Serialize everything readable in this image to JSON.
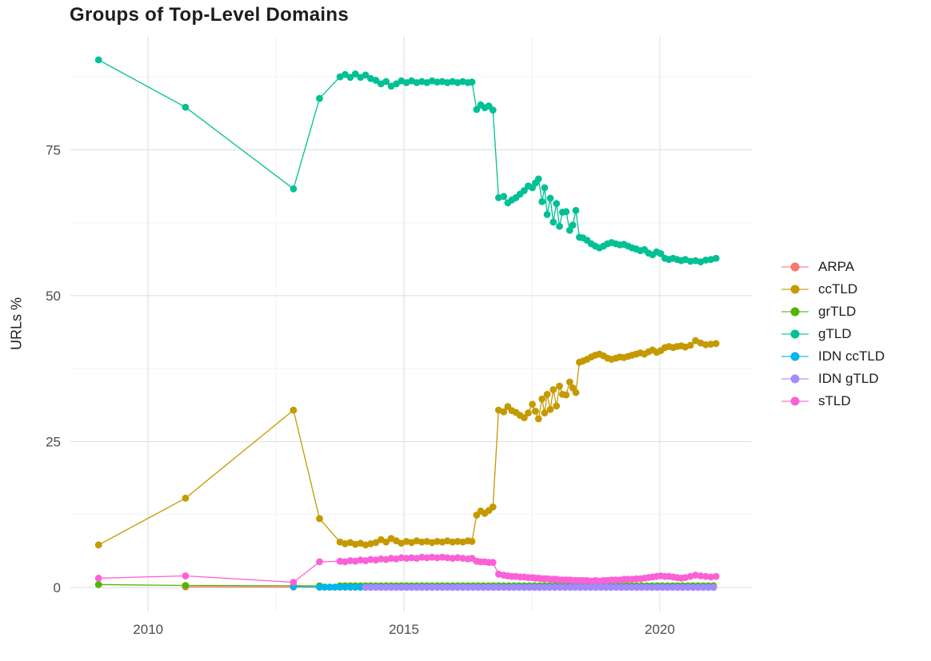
{
  "page": {
    "background": "#ffffff"
  },
  "colors": {
    "major_grid": "#e3e3e3",
    "minor_grid": "#f2f2f2",
    "tick_label": "#4d4d4d",
    "title_text": "#1d1d1d",
    "axis_title_text": "#222222"
  },
  "chart_data": {
    "type": "line",
    "title": "Groups of Top-Level Domains",
    "xlabel": "",
    "ylabel": "URLs %",
    "grid": true,
    "legend_position": "right",
    "x_domain": [
      2008.48,
      2021.8
    ],
    "y_domain": [
      -4.1,
      94.5
    ],
    "x_ticks": [
      2010,
      2015,
      2020
    ],
    "x_tick_labels": [
      "2010",
      "2015",
      "2020"
    ],
    "x_minor_ticks": [
      2012.5,
      2017.5
    ],
    "y_ticks": [
      0,
      25,
      50,
      75
    ],
    "y_tick_labels": [
      "0",
      "25",
      "50",
      "75"
    ],
    "y_minor_ticks": [
      12.5,
      37.5,
      62.5,
      87.5
    ],
    "series": [
      {
        "name": "ARPA",
        "color": "#F8766D",
        "points": [
          [
            2010.73,
            0.1
          ],
          [
            2012.84,
            0.07
          ]
        ],
        "flat": {
          "from": 2013.35,
          "to": 2021.05,
          "step": 0.1,
          "value": 0.05
        }
      },
      {
        "name": "ccTLD",
        "color": "#C49A00",
        "points": [
          [
            2009.03,
            7.3
          ],
          [
            2010.73,
            15.3
          ],
          [
            2012.84,
            30.4
          ],
          [
            2013.35,
            11.8
          ],
          [
            2013.75,
            7.8
          ],
          [
            2013.85,
            7.5
          ],
          [
            2013.95,
            7.7
          ],
          [
            2014.05,
            7.4
          ],
          [
            2014.15,
            7.6
          ],
          [
            2014.25,
            7.3
          ],
          [
            2014.35,
            7.5
          ],
          [
            2014.45,
            7.7
          ],
          [
            2014.55,
            8.2
          ],
          [
            2014.65,
            7.8
          ],
          [
            2014.75,
            8.4
          ],
          [
            2014.85,
            8.0
          ],
          [
            2014.95,
            7.6
          ],
          [
            2015.05,
            7.9
          ],
          [
            2015.15,
            7.7
          ],
          [
            2015.25,
            8.0
          ],
          [
            2015.35,
            7.8
          ],
          [
            2015.45,
            7.9
          ],
          [
            2015.55,
            7.7
          ],
          [
            2015.65,
            7.9
          ],
          [
            2015.75,
            7.8
          ],
          [
            2015.85,
            8.0
          ],
          [
            2015.95,
            7.8
          ],
          [
            2016.05,
            7.9
          ],
          [
            2016.15,
            7.8
          ],
          [
            2016.25,
            8.0
          ],
          [
            2016.33,
            7.9
          ],
          [
            2016.42,
            12.4
          ],
          [
            2016.5,
            13.1
          ],
          [
            2016.58,
            12.7
          ],
          [
            2016.66,
            13.2
          ],
          [
            2016.74,
            13.8
          ],
          [
            2016.85,
            30.4
          ],
          [
            2016.95,
            30.1
          ],
          [
            2017.03,
            31.0
          ],
          [
            2017.11,
            30.3
          ],
          [
            2017.19,
            30.0
          ],
          [
            2017.27,
            29.5
          ],
          [
            2017.35,
            29.1
          ],
          [
            2017.43,
            29.9
          ],
          [
            2017.51,
            31.4
          ],
          [
            2017.57,
            30.2
          ],
          [
            2017.63,
            28.9
          ],
          [
            2017.7,
            32.3
          ],
          [
            2017.75,
            29.9
          ],
          [
            2017.8,
            33.1
          ],
          [
            2017.86,
            30.5
          ],
          [
            2017.92,
            33.9
          ],
          [
            2017.98,
            31.1
          ],
          [
            2018.04,
            34.5
          ],
          [
            2018.1,
            33.1
          ],
          [
            2018.17,
            33.0
          ],
          [
            2018.24,
            35.2
          ],
          [
            2018.3,
            34.2
          ],
          [
            2018.36,
            33.4
          ],
          [
            2018.43,
            38.6
          ],
          [
            2018.5,
            38.8
          ],
          [
            2018.58,
            39.1
          ],
          [
            2018.66,
            39.5
          ],
          [
            2018.74,
            39.8
          ],
          [
            2018.82,
            40.0
          ],
          [
            2018.9,
            39.7
          ],
          [
            2018.98,
            39.3
          ],
          [
            2019.06,
            39.1
          ],
          [
            2019.14,
            39.3
          ],
          [
            2019.22,
            39.5
          ],
          [
            2019.3,
            39.4
          ],
          [
            2019.38,
            39.6
          ],
          [
            2019.46,
            39.8
          ],
          [
            2019.54,
            40.0
          ],
          [
            2019.62,
            40.2
          ],
          [
            2019.7,
            40.0
          ],
          [
            2019.78,
            40.4
          ],
          [
            2019.86,
            40.7
          ],
          [
            2019.94,
            40.3
          ],
          [
            2020.02,
            40.6
          ],
          [
            2020.1,
            41.1
          ],
          [
            2020.18,
            41.3
          ],
          [
            2020.26,
            41.1
          ],
          [
            2020.34,
            41.3
          ],
          [
            2020.42,
            41.4
          ],
          [
            2020.5,
            41.2
          ],
          [
            2020.6,
            41.5
          ],
          [
            2020.7,
            42.3
          ],
          [
            2020.8,
            41.9
          ],
          [
            2020.9,
            41.6
          ],
          [
            2021.0,
            41.7
          ],
          [
            2021.1,
            41.8
          ]
        ]
      },
      {
        "name": "grTLD",
        "color": "#53B400",
        "points": [
          [
            2009.03,
            0.5
          ],
          [
            2010.73,
            0.35
          ],
          [
            2012.84,
            0.3
          ],
          [
            2013.35,
            0.3
          ]
        ],
        "flat": {
          "from": 2013.75,
          "to": 2021.05,
          "step": 0.1,
          "value": 0.3
        }
      },
      {
        "name": "gTLD",
        "color": "#00C094",
        "points": [
          [
            2009.03,
            90.4
          ],
          [
            2010.73,
            82.3
          ],
          [
            2012.84,
            68.3
          ],
          [
            2013.35,
            83.8
          ],
          [
            2013.75,
            87.5
          ],
          [
            2013.85,
            87.9
          ],
          [
            2013.95,
            87.4
          ],
          [
            2014.05,
            88.0
          ],
          [
            2014.15,
            87.4
          ],
          [
            2014.25,
            87.8
          ],
          [
            2014.35,
            87.2
          ],
          [
            2014.45,
            86.9
          ],
          [
            2014.55,
            86.3
          ],
          [
            2014.65,
            86.7
          ],
          [
            2014.75,
            85.9
          ],
          [
            2014.85,
            86.3
          ],
          [
            2014.95,
            86.8
          ],
          [
            2015.05,
            86.5
          ],
          [
            2015.15,
            86.8
          ],
          [
            2015.25,
            86.5
          ],
          [
            2015.35,
            86.7
          ],
          [
            2015.45,
            86.5
          ],
          [
            2015.55,
            86.8
          ],
          [
            2015.65,
            86.6
          ],
          [
            2015.75,
            86.7
          ],
          [
            2015.85,
            86.5
          ],
          [
            2015.95,
            86.7
          ],
          [
            2016.05,
            86.5
          ],
          [
            2016.15,
            86.7
          ],
          [
            2016.25,
            86.5
          ],
          [
            2016.33,
            86.6
          ],
          [
            2016.42,
            81.9
          ],
          [
            2016.5,
            82.7
          ],
          [
            2016.58,
            82.2
          ],
          [
            2016.66,
            82.5
          ],
          [
            2016.74,
            81.8
          ],
          [
            2016.85,
            66.8
          ],
          [
            2016.95,
            67.0
          ],
          [
            2017.03,
            65.9
          ],
          [
            2017.11,
            66.4
          ],
          [
            2017.19,
            66.8
          ],
          [
            2017.27,
            67.4
          ],
          [
            2017.35,
            68.0
          ],
          [
            2017.43,
            68.8
          ],
          [
            2017.51,
            68.5
          ],
          [
            2017.57,
            69.3
          ],
          [
            2017.63,
            70.0
          ],
          [
            2017.7,
            66.1
          ],
          [
            2017.75,
            68.5
          ],
          [
            2017.8,
            63.9
          ],
          [
            2017.86,
            66.7
          ],
          [
            2017.92,
            62.6
          ],
          [
            2017.98,
            65.8
          ],
          [
            2018.04,
            61.9
          ],
          [
            2018.1,
            64.3
          ],
          [
            2018.17,
            64.4
          ],
          [
            2018.24,
            61.2
          ],
          [
            2018.3,
            62.1
          ],
          [
            2018.36,
            64.6
          ],
          [
            2018.43,
            60.0
          ],
          [
            2018.5,
            59.9
          ],
          [
            2018.58,
            59.5
          ],
          [
            2018.66,
            58.9
          ],
          [
            2018.74,
            58.5
          ],
          [
            2018.82,
            58.2
          ],
          [
            2018.9,
            58.5
          ],
          [
            2018.98,
            58.9
          ],
          [
            2019.06,
            59.1
          ],
          [
            2019.14,
            58.9
          ],
          [
            2019.22,
            58.7
          ],
          [
            2019.3,
            58.8
          ],
          [
            2019.38,
            58.5
          ],
          [
            2019.46,
            58.2
          ],
          [
            2019.54,
            58.0
          ],
          [
            2019.62,
            57.7
          ],
          [
            2019.7,
            57.9
          ],
          [
            2019.78,
            57.3
          ],
          [
            2019.86,
            57.0
          ],
          [
            2019.94,
            57.5
          ],
          [
            2020.02,
            57.2
          ],
          [
            2020.1,
            56.4
          ],
          [
            2020.18,
            56.2
          ],
          [
            2020.26,
            56.4
          ],
          [
            2020.34,
            56.2
          ],
          [
            2020.42,
            56.0
          ],
          [
            2020.5,
            56.2
          ],
          [
            2020.6,
            55.9
          ],
          [
            2020.7,
            56.0
          ],
          [
            2020.8,
            55.8
          ],
          [
            2020.9,
            56.1
          ],
          [
            2021.0,
            56.2
          ],
          [
            2021.1,
            56.4
          ]
        ]
      },
      {
        "name": "IDN ccTLD",
        "color": "#00B6EB",
        "points": [
          [
            2012.84,
            0.15
          ]
        ],
        "flat": {
          "from": 2013.35,
          "to": 2021.05,
          "step": 0.1,
          "value": 0.08
        }
      },
      {
        "name": "IDN gTLD",
        "color": "#A58AFF",
        "points": [],
        "flat": {
          "from": 2014.25,
          "to": 2021.05,
          "step": 0.1,
          "value": 0.02
        }
      },
      {
        "name": "sTLD",
        "color": "#FB61D7",
        "points": [
          [
            2009.03,
            1.6
          ],
          [
            2010.73,
            2.0
          ],
          [
            2012.84,
            0.9
          ],
          [
            2013.35,
            4.4
          ],
          [
            2013.75,
            4.5
          ],
          [
            2013.85,
            4.4
          ],
          [
            2013.95,
            4.6
          ],
          [
            2014.05,
            4.5
          ],
          [
            2014.15,
            4.7
          ],
          [
            2014.25,
            4.6
          ],
          [
            2014.35,
            4.8
          ],
          [
            2014.45,
            4.7
          ],
          [
            2014.55,
            4.9
          ],
          [
            2014.65,
            4.8
          ],
          [
            2014.75,
            5.0
          ],
          [
            2014.85,
            4.9
          ],
          [
            2014.95,
            5.1
          ],
          [
            2015.05,
            5.0
          ],
          [
            2015.15,
            5.1
          ],
          [
            2015.25,
            5.0
          ],
          [
            2015.35,
            5.2
          ],
          [
            2015.45,
            5.1
          ],
          [
            2015.55,
            5.2
          ],
          [
            2015.65,
            5.1
          ],
          [
            2015.75,
            5.2
          ],
          [
            2015.85,
            5.1
          ],
          [
            2015.95,
            5.0
          ],
          [
            2016.05,
            5.1
          ],
          [
            2016.15,
            5.0
          ],
          [
            2016.25,
            4.9
          ],
          [
            2016.33,
            5.0
          ],
          [
            2016.42,
            4.5
          ],
          [
            2016.5,
            4.4
          ],
          [
            2016.58,
            4.4
          ],
          [
            2016.66,
            4.3
          ],
          [
            2016.74,
            4.3
          ],
          [
            2016.85,
            2.3
          ],
          [
            2016.95,
            2.1
          ],
          [
            2017.03,
            2.0
          ],
          [
            2017.11,
            1.9
          ],
          [
            2017.19,
            1.9
          ],
          [
            2017.27,
            1.8
          ],
          [
            2017.35,
            1.8
          ],
          [
            2017.43,
            1.7
          ],
          [
            2017.51,
            1.7
          ],
          [
            2017.57,
            1.6
          ],
          [
            2017.63,
            1.6
          ],
          [
            2017.7,
            1.5
          ],
          [
            2017.75,
            1.5
          ],
          [
            2017.8,
            1.5
          ],
          [
            2017.86,
            1.4
          ],
          [
            2017.92,
            1.4
          ],
          [
            2017.98,
            1.4
          ],
          [
            2018.04,
            1.3
          ],
          [
            2018.1,
            1.3
          ],
          [
            2018.17,
            1.3
          ],
          [
            2018.24,
            1.3
          ],
          [
            2018.3,
            1.2
          ],
          [
            2018.36,
            1.2
          ],
          [
            2018.43,
            1.2
          ],
          [
            2018.5,
            1.2
          ],
          [
            2018.58,
            1.2
          ],
          [
            2018.66,
            1.1
          ],
          [
            2018.74,
            1.2
          ],
          [
            2018.82,
            1.1
          ],
          [
            2018.9,
            1.2
          ],
          [
            2018.98,
            1.2
          ],
          [
            2019.06,
            1.3
          ],
          [
            2019.14,
            1.3
          ],
          [
            2019.22,
            1.3
          ],
          [
            2019.3,
            1.4
          ],
          [
            2019.38,
            1.4
          ],
          [
            2019.46,
            1.4
          ],
          [
            2019.54,
            1.5
          ],
          [
            2019.62,
            1.5
          ],
          [
            2019.7,
            1.6
          ],
          [
            2019.78,
            1.7
          ],
          [
            2019.86,
            1.8
          ],
          [
            2019.94,
            1.9
          ],
          [
            2020.02,
            2.0
          ],
          [
            2020.1,
            1.9
          ],
          [
            2020.18,
            1.9
          ],
          [
            2020.26,
            1.8
          ],
          [
            2020.34,
            1.7
          ],
          [
            2020.42,
            1.6
          ],
          [
            2020.5,
            1.7
          ],
          [
            2020.6,
            1.9
          ],
          [
            2020.7,
            2.1
          ],
          [
            2020.8,
            2.0
          ],
          [
            2020.9,
            1.9
          ],
          [
            2021.0,
            1.8
          ],
          [
            2021.1,
            1.9
          ]
        ]
      }
    ]
  }
}
